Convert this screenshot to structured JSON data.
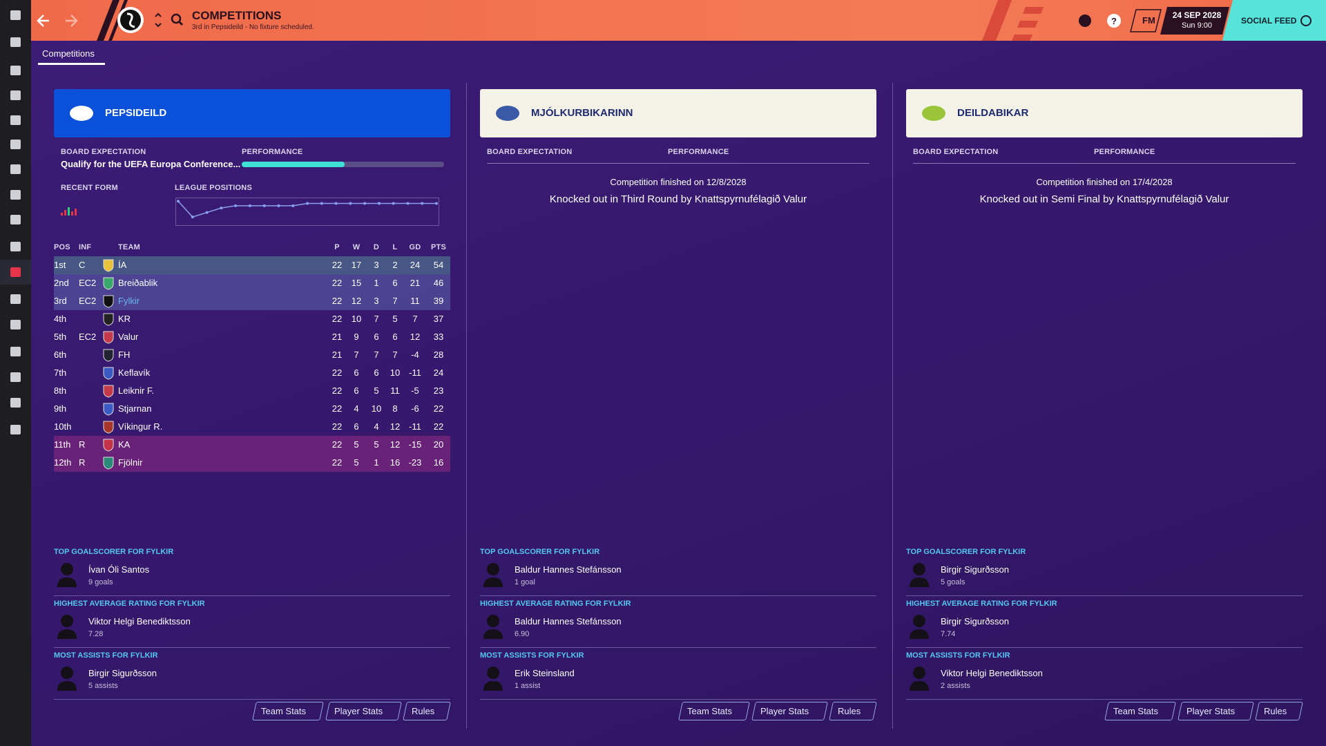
{
  "header": {
    "title": "COMPETITIONS",
    "subtitle": "3rd in Pepsideild - No fixture scheduled.",
    "brand": "FM",
    "date": "24 SEP 2028",
    "time": "Sun 9:00",
    "social": "SOCIAL FEED"
  },
  "tab": "Competitions",
  "competitions": [
    {
      "name": "PEPSIDEILD",
      "board_expectation_label": "BOARD EXPECTATION",
      "performance_label": "PERFORMANCE",
      "board_expectation": "Qualify for the UEFA Europa Conference...",
      "performance": 51,
      "recent_form_label": "RECENT FORM",
      "league_positions_label": "LEAGUE POSITIONS",
      "league_positions": [
        2,
        9,
        7,
        5,
        4,
        4,
        4,
        4,
        4,
        3,
        3,
        3,
        3,
        3,
        3,
        3,
        3,
        3,
        3
      ],
      "table": {
        "headers": [
          "POS",
          "INF",
          "TEAM",
          "P",
          "W",
          "D",
          "L",
          "GD",
          "PTS"
        ],
        "rows": [
          [
            "1st",
            "C",
            "ÍA",
            22,
            17,
            3,
            2,
            24,
            54
          ],
          [
            "2nd",
            "EC2",
            "Breiðablik",
            22,
            15,
            1,
            6,
            21,
            46
          ],
          [
            "3rd",
            "EC2",
            "Fylkir",
            22,
            12,
            3,
            7,
            11,
            39
          ],
          [
            "4th",
            null,
            "KR",
            22,
            10,
            7,
            5,
            7,
            37
          ],
          [
            "5th",
            "EC2",
            "Valur",
            21,
            9,
            6,
            6,
            12,
            33
          ],
          [
            "6th",
            null,
            "FH",
            21,
            7,
            7,
            7,
            -4,
            28
          ],
          [
            "7th",
            null,
            "Keflavík",
            22,
            6,
            6,
            10,
            -11,
            24
          ],
          [
            "8th",
            null,
            "Leiknir F.",
            22,
            6,
            5,
            11,
            -5,
            23
          ],
          [
            "9th",
            null,
            "Stjarnan",
            22,
            4,
            10,
            8,
            -6,
            22
          ],
          [
            "10th",
            null,
            "Víkingur R.",
            22,
            6,
            4,
            12,
            -11,
            22
          ],
          [
            "11th",
            "R",
            "KA",
            22,
            5,
            5,
            12,
            -15,
            20
          ],
          [
            "12th",
            "R",
            "Fjölnir",
            22,
            5,
            1,
            16,
            -23,
            16
          ]
        ]
      },
      "stats": [
        {
          "title": "TOP GOALSCORER FOR FYLKIR",
          "player": "Ívan Óli Santos",
          "detail": "9 goals"
        },
        {
          "title": "HIGHEST AVERAGE RATING FOR FYLKIR",
          "player": "Viktor Helgi Benediktsson",
          "detail": "7.28"
        },
        {
          "title": "MOST ASSISTS FOR FYLKIR",
          "player": "Birgir Sigurðsson",
          "detail": "5 assists"
        }
      ],
      "buttons": [
        "Team Stats",
        "Player Stats",
        "Rules"
      ]
    },
    {
      "name": "MJÓLKURBIKARINN",
      "board_expectation_label": "BOARD EXPECTATION",
      "performance_label": "PERFORMANCE",
      "finished": "Competition finished on 12/8/2028",
      "result": "Knocked out in Third Round by Knattspyrnufélagið Valur",
      "stats": [
        {
          "title": "TOP GOALSCORER FOR FYLKIR",
          "player": "Baldur Hannes Stefánsson",
          "detail": "1 goal"
        },
        {
          "title": "HIGHEST AVERAGE RATING FOR FYLKIR",
          "player": "Baldur Hannes Stefánsson",
          "detail": "6.90"
        },
        {
          "title": "MOST ASSISTS FOR FYLKIR",
          "player": "Erik Steinsland",
          "detail": "1 assist"
        }
      ],
      "buttons": [
        "Team Stats",
        "Player Stats",
        "Rules"
      ]
    },
    {
      "name": "DEILDABIKAR",
      "board_expectation_label": "BOARD EXPECTATION",
      "performance_label": "PERFORMANCE",
      "finished": "Competition finished on 17/4/2028",
      "result": "Knocked out in Semi Final by Knattspyrnufélagið Valur",
      "stats": [
        {
          "title": "TOP GOALSCORER FOR FYLKIR",
          "player": "Birgir Sigurðsson",
          "detail": "5 goals"
        },
        {
          "title": "HIGHEST AVERAGE RATING FOR FYLKIR",
          "player": "Birgir Sigurðsson",
          "detail": "7.74"
        },
        {
          "title": "MOST ASSISTS FOR FYLKIR",
          "player": "Viktor Helgi Benediktsson",
          "detail": "2 assists"
        }
      ],
      "buttons": [
        "Team Stats",
        "Player Stats",
        "Rules"
      ]
    }
  ]
}
